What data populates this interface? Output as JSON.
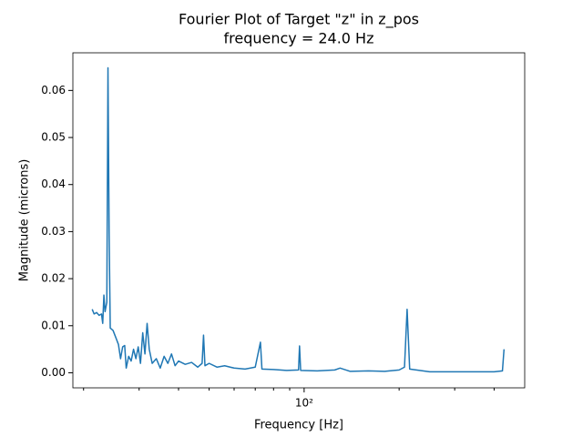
{
  "chart_data": {
    "type": "line",
    "title": "Fourier Plot of Target \"z\" in z_pos",
    "subtitle": "frequency = 24.0 Hz",
    "x_label": "Frequency [Hz]",
    "y_label": "Magnitude (microns)",
    "x_scale": "log",
    "color": "#1f77b4",
    "xlim": [
      18.5,
      500
    ],
    "ylim": [
      -0.0032,
      0.068
    ],
    "xticks": [
      {
        "value": 100,
        "label": "10²"
      }
    ],
    "xminorticks": [
      20,
      30,
      40,
      50,
      60,
      70,
      80,
      90,
      200,
      300,
      400
    ],
    "yticks": [
      {
        "value": 0,
        "label": "0.00"
      },
      0.01,
      0.02,
      0.03,
      0.04,
      0.05,
      0.06
    ],
    "x": [
      21.3,
      21.6,
      22.0,
      22.4,
      22.8,
      23.0,
      23.2,
      23.4,
      23.7,
      23.9,
      24.1,
      24.3,
      24.8,
      25.3,
      25.8,
      26.2,
      26.6,
      27.0,
      27.3,
      27.8,
      28.3,
      28.8,
      29.3,
      29.8,
      30.3,
      30.8,
      31.3,
      31.8,
      32.3,
      33,
      34,
      35,
      36,
      37,
      38,
      39,
      40,
      42,
      44,
      46,
      47.5,
      48,
      48.5,
      50,
      53,
      56,
      60,
      65,
      70,
      72.7,
      73.5,
      80,
      88,
      96,
      96.7,
      97.5,
      110,
      125,
      130,
      140,
      160,
      180,
      200,
      208,
      212,
      216,
      250,
      300,
      350,
      400,
      425,
      430
    ],
    "values": [
      0.0135,
      0.0125,
      0.0128,
      0.0122,
      0.0125,
      0.0105,
      0.0165,
      0.013,
      0.015,
      0.0648,
      0.03,
      0.0095,
      0.009,
      0.0075,
      0.006,
      0.003,
      0.0055,
      0.0058,
      0.001,
      0.0035,
      0.0025,
      0.005,
      0.003,
      0.0055,
      0.002,
      0.0085,
      0.004,
      0.0105,
      0.005,
      0.002,
      0.003,
      0.001,
      0.0035,
      0.002,
      0.004,
      0.0015,
      0.0025,
      0.0018,
      0.0022,
      0.0012,
      0.002,
      0.008,
      0.0015,
      0.002,
      0.0012,
      0.0015,
      0.001,
      0.0008,
      0.0012,
      0.0065,
      0.0008,
      0.0007,
      0.0005,
      0.0006,
      0.0057,
      0.0005,
      0.0004,
      0.0006,
      0.001,
      0.0003,
      0.0004,
      0.0003,
      0.0006,
      0.0012,
      0.0135,
      0.0008,
      0.0002,
      0.0002,
      0.0002,
      0.0002,
      0.0004,
      0.005
    ]
  }
}
